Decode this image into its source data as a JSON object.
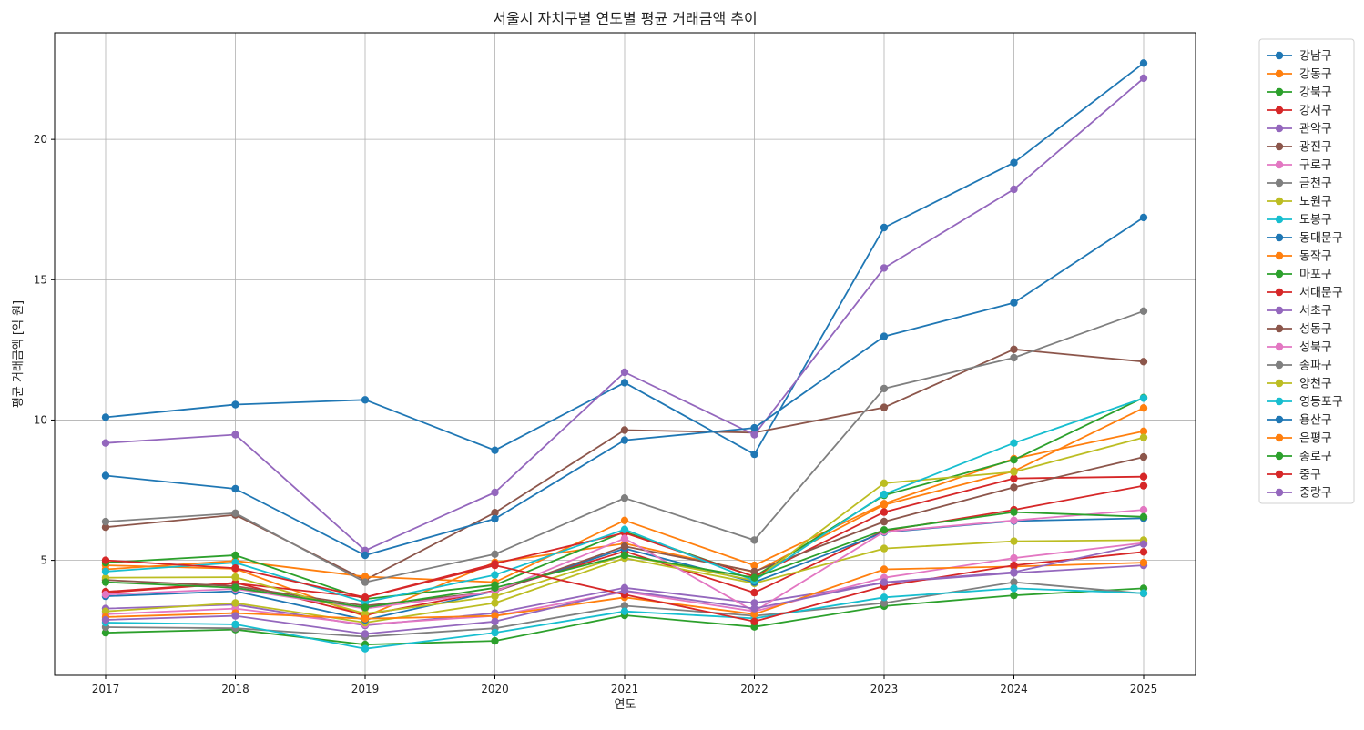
{
  "chart_data": {
    "type": "line",
    "title": "서울시 자치구별 연도별 평균 거래금액 추이",
    "xlabel": "연도",
    "ylabel": "평균 거래금액 [억 원]",
    "x": [
      "2017",
      "2018",
      "2019",
      "2020",
      "2021",
      "2022",
      "2023",
      "2024",
      "2025"
    ],
    "ylim": [
      0.9,
      23.8
    ],
    "yticks": [
      "5",
      "10",
      "15",
      "20"
    ],
    "grid": true,
    "legend_position": "outside-right",
    "series": [
      {
        "name": "강남구",
        "color": "#1f77b4",
        "values": [
          10.1,
          10.55,
          10.72,
          8.92,
          11.33,
          8.78,
          16.86,
          19.17,
          22.72
        ]
      },
      {
        "name": "강동구",
        "color": "#ff7f0e",
        "values": [
          4.82,
          4.7,
          3.0,
          4.93,
          5.6,
          4.58,
          6.98,
          8.18,
          10.43
        ]
      },
      {
        "name": "강북구",
        "color": "#2ca02c",
        "values": [
          2.42,
          2.53,
          2.0,
          2.13,
          3.04,
          2.63,
          3.37,
          3.75,
          4.0
        ]
      },
      {
        "name": "강서구",
        "color": "#d62728",
        "values": [
          3.88,
          4.2,
          3.05,
          3.92,
          5.32,
          3.85,
          6.05,
          6.8,
          7.66
        ]
      },
      {
        "name": "관악구",
        "color": "#9467bd",
        "values": [
          3.28,
          3.42,
          2.68,
          3.12,
          4.02,
          3.48,
          4.2,
          4.55,
          4.82
        ]
      },
      {
        "name": "광진구",
        "color": "#8c564b",
        "values": [
          6.18,
          6.62,
          4.3,
          6.7,
          9.64,
          9.55,
          10.45,
          12.52,
          12.08
        ]
      },
      {
        "name": "구로구",
        "color": "#e377c2",
        "values": [
          3.08,
          3.28,
          2.72,
          3.02,
          3.88,
          3.18,
          4.38,
          5.08,
          5.62
        ]
      },
      {
        "name": "금천구",
        "color": "#7f7f7f",
        "values": [
          2.62,
          2.58,
          2.28,
          2.58,
          3.38,
          3.02,
          3.48,
          4.22,
          3.82
        ]
      },
      {
        "name": "노원구",
        "color": "#bcbd22",
        "values": [
          3.18,
          3.48,
          2.78,
          3.48,
          5.08,
          4.18,
          5.42,
          5.68,
          5.72
        ]
      },
      {
        "name": "도봉구",
        "color": "#17becf",
        "values": [
          2.78,
          2.72,
          1.85,
          2.42,
          3.18,
          2.93,
          3.68,
          4.0,
          3.83
        ]
      },
      {
        "name": "동대문구",
        "color": "#1f77b4",
        "values": [
          3.72,
          3.9,
          2.88,
          3.9,
          5.42,
          4.22,
          6.0,
          6.4,
          6.5
        ]
      },
      {
        "name": "동작구",
        "color": "#ff7f0e",
        "values": [
          4.68,
          4.98,
          4.42,
          4.22,
          6.42,
          4.82,
          7.02,
          8.62,
          9.6
        ]
      },
      {
        "name": "마포구",
        "color": "#2ca02c",
        "values": [
          4.92,
          5.18,
          3.62,
          4.12,
          6.02,
          4.42,
          7.32,
          8.58,
          10.8
        ]
      },
      {
        "name": "서대문구",
        "color": "#d62728",
        "values": [
          3.85,
          4.18,
          3.68,
          4.88,
          5.98,
          4.42,
          6.72,
          7.92,
          7.98
        ]
      },
      {
        "name": "서초구",
        "color": "#9467bd",
        "values": [
          9.18,
          9.48,
          5.35,
          7.42,
          11.7,
          9.48,
          15.42,
          18.22,
          22.18
        ]
      },
      {
        "name": "성동구",
        "color": "#8c564b",
        "values": [
          4.3,
          4.08,
          3.38,
          3.88,
          5.5,
          4.6,
          6.38,
          7.6,
          8.68
        ]
      },
      {
        "name": "성북구",
        "color": "#e377c2",
        "values": [
          3.78,
          3.98,
          3.28,
          3.88,
          5.78,
          3.18,
          6.02,
          6.42,
          6.8
        ]
      },
      {
        "name": "송파구",
        "color": "#7f7f7f",
        "values": [
          6.38,
          6.68,
          4.22,
          5.22,
          7.22,
          5.72,
          11.12,
          12.22,
          13.88
        ]
      },
      {
        "name": "양천구",
        "color": "#bcbd22",
        "values": [
          4.38,
          4.4,
          3.1,
          3.72,
          5.18,
          4.28,
          7.75,
          8.15,
          9.38
        ]
      },
      {
        "name": "영등포구",
        "color": "#17becf",
        "values": [
          4.6,
          4.92,
          3.5,
          4.48,
          6.1,
          4.28,
          7.35,
          9.18,
          10.78
        ]
      },
      {
        "name": "용산구",
        "color": "#1f77b4",
        "values": [
          8.02,
          7.55,
          5.18,
          6.48,
          9.28,
          9.72,
          12.98,
          14.18,
          17.22
        ]
      },
      {
        "name": "은평구",
        "color": "#ff7f0e",
        "values": [
          2.98,
          3.12,
          2.92,
          3.02,
          3.68,
          3.08,
          4.68,
          4.78,
          4.92
        ]
      },
      {
        "name": "종로구",
        "color": "#2ca02c",
        "values": [
          4.22,
          4.02,
          3.32,
          4.02,
          5.18,
          4.38,
          6.08,
          6.72,
          6.55
        ]
      },
      {
        "name": "중구",
        "color": "#d62728",
        "values": [
          5.0,
          4.72,
          3.68,
          4.82,
          3.78,
          2.82,
          4.08,
          4.82,
          5.3
        ]
      },
      {
        "name": "중랑구",
        "color": "#9467bd",
        "values": [
          2.88,
          3.02,
          2.38,
          2.82,
          3.92,
          3.28,
          4.22,
          4.58,
          5.58
        ]
      }
    ]
  }
}
